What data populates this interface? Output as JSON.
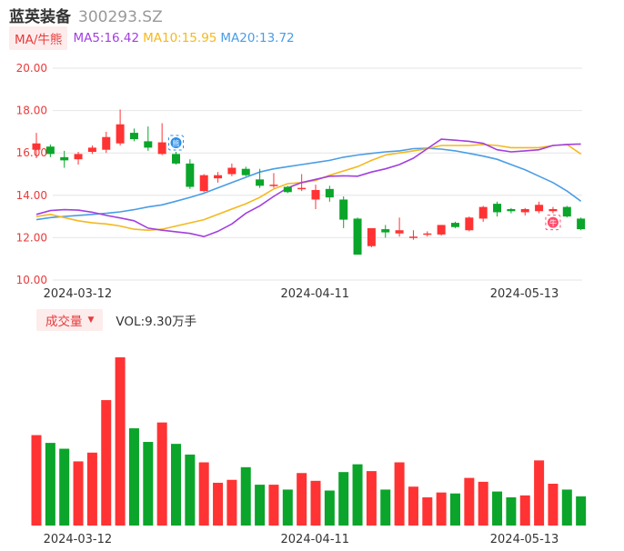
{
  "header": {
    "stock_name": "蓝英装备",
    "stock_code": "300293.SZ"
  },
  "ma_bar": {
    "chip_label": "MA/牛熊",
    "ma5": "MA5:16.42",
    "ma10": "MA10:15.95",
    "ma20": "MA20:13.72"
  },
  "volume_bar": {
    "chip_label": "成交量",
    "chip_caret": "▼",
    "value_text": "VOL:9.30万手"
  },
  "colors": {
    "up": "#ff3333",
    "down": "#0aa52a",
    "ma5": "#a23fe0",
    "ma10": "#f5b81e",
    "ma20": "#4a9de6",
    "grid": "#e6e6e6",
    "axis_label": "#e83b3b"
  },
  "icons": {
    "bear_marker": "bear-signal-icon",
    "bull_marker": "bull-signal-icon",
    "bear_marker_glyph": "熊",
    "bull_marker_glyph": "牛"
  },
  "chart_data": {
    "type": "candlestick",
    "y_ticks": [
      "20.00",
      "18.00",
      "16.00",
      "14.00",
      "12.00",
      "10.00"
    ],
    "ylim": [
      10,
      20
    ],
    "x_tick_labels": [
      {
        "index": 1,
        "label": "2024-03-12"
      },
      {
        "index": 18,
        "label": "2024-04-11"
      },
      {
        "index": 33,
        "label": "2024-05-13"
      }
    ],
    "candles": [
      {
        "o": 16.15,
        "h": 16.95,
        "l": 15.75,
        "c": 16.45
      },
      {
        "o": 16.3,
        "h": 16.4,
        "l": 15.8,
        "c": 15.95
      },
      {
        "o": 15.8,
        "h": 16.1,
        "l": 15.3,
        "c": 15.65
      },
      {
        "o": 15.7,
        "h": 16.05,
        "l": 15.45,
        "c": 15.95
      },
      {
        "o": 16.05,
        "h": 16.35,
        "l": 15.95,
        "c": 16.25
      },
      {
        "o": 16.15,
        "h": 17.0,
        "l": 16.0,
        "c": 16.75
      },
      {
        "o": 16.45,
        "h": 18.05,
        "l": 16.35,
        "c": 17.35
      },
      {
        "o": 16.95,
        "h": 17.15,
        "l": 16.55,
        "c": 16.65
      },
      {
        "o": 16.55,
        "h": 17.25,
        "l": 16.1,
        "c": 16.25
      },
      {
        "o": 15.95,
        "h": 17.4,
        "l": 15.9,
        "c": 16.5
      },
      {
        "o": 15.95,
        "h": 16.05,
        "l": 15.45,
        "c": 15.5
      },
      {
        "o": 15.5,
        "h": 15.7,
        "l": 14.3,
        "c": 14.4
      },
      {
        "o": 14.2,
        "h": 15.0,
        "l": 14.15,
        "c": 14.95
      },
      {
        "o": 14.8,
        "h": 15.1,
        "l": 14.6,
        "c": 14.95
      },
      {
        "o": 15.0,
        "h": 15.5,
        "l": 14.9,
        "c": 15.3
      },
      {
        "o": 15.25,
        "h": 15.35,
        "l": 14.9,
        "c": 14.95
      },
      {
        "o": 14.75,
        "h": 15.25,
        "l": 14.35,
        "c": 14.45
      },
      {
        "o": 14.45,
        "h": 15.05,
        "l": 14.35,
        "c": 14.5
      },
      {
        "o": 14.4,
        "h": 14.45,
        "l": 14.1,
        "c": 14.15
      },
      {
        "o": 14.3,
        "h": 15.0,
        "l": 14.2,
        "c": 14.35
      },
      {
        "o": 13.8,
        "h": 14.5,
        "l": 13.35,
        "c": 14.25
      },
      {
        "o": 14.3,
        "h": 14.45,
        "l": 13.7,
        "c": 13.9
      },
      {
        "o": 13.8,
        "h": 13.95,
        "l": 12.45,
        "c": 12.85
      },
      {
        "o": 12.9,
        "h": 12.95,
        "l": 11.2,
        "c": 11.2
      },
      {
        "o": 11.6,
        "h": 12.45,
        "l": 11.55,
        "c": 12.45
      },
      {
        "o": 12.4,
        "h": 12.6,
        "l": 12.0,
        "c": 12.25
      },
      {
        "o": 12.2,
        "h": 12.95,
        "l": 12.05,
        "c": 12.35
      },
      {
        "o": 12.0,
        "h": 12.35,
        "l": 11.9,
        "c": 12.05
      },
      {
        "o": 12.15,
        "h": 12.3,
        "l": 12.05,
        "c": 12.2
      },
      {
        "o": 12.15,
        "h": 12.6,
        "l": 12.1,
        "c": 12.6
      },
      {
        "o": 12.7,
        "h": 12.75,
        "l": 12.45,
        "c": 12.5
      },
      {
        "o": 12.35,
        "h": 13.0,
        "l": 12.3,
        "c": 12.95
      },
      {
        "o": 12.9,
        "h": 13.5,
        "l": 12.75,
        "c": 13.45
      },
      {
        "o": 13.6,
        "h": 13.7,
        "l": 13.0,
        "c": 13.2
      },
      {
        "o": 13.35,
        "h": 13.4,
        "l": 13.15,
        "c": 13.25
      },
      {
        "o": 13.2,
        "h": 13.4,
        "l": 13.05,
        "c": 13.35
      },
      {
        "o": 13.25,
        "h": 13.7,
        "l": 13.15,
        "c": 13.55
      },
      {
        "o": 13.25,
        "h": 13.45,
        "l": 13.15,
        "c": 13.35
      },
      {
        "o": 13.45,
        "h": 13.5,
        "l": 12.95,
        "c": 13.0
      },
      {
        "o": 12.9,
        "h": 12.95,
        "l": 12.35,
        "c": 12.4
      }
    ],
    "ma5": [
      13.1,
      13.28,
      13.32,
      13.3,
      13.2,
      13.05,
      12.93,
      12.8,
      12.45,
      12.35,
      12.28,
      12.2,
      12.05,
      12.3,
      12.65,
      13.15,
      13.5,
      13.95,
      14.35,
      14.6,
      14.75,
      14.9,
      14.92,
      14.9,
      15.1,
      15.25,
      15.45,
      15.75,
      16.2,
      16.65,
      16.6,
      16.55,
      16.45,
      16.15,
      16.05,
      16.1,
      16.15,
      16.35,
      16.4,
      16.42
    ],
    "ma10": [
      13.0,
      13.1,
      12.95,
      12.8,
      12.7,
      12.65,
      12.55,
      12.4,
      12.35,
      12.4,
      12.55,
      12.7,
      12.85,
      13.1,
      13.35,
      13.6,
      13.9,
      14.3,
      14.55,
      14.6,
      14.7,
      14.95,
      15.15,
      15.35,
      15.65,
      15.9,
      16.0,
      16.1,
      16.2,
      16.35,
      16.35,
      16.35,
      16.4,
      16.35,
      16.25,
      16.25,
      16.25,
      16.35,
      16.4,
      15.95
    ],
    "ma20": [
      12.85,
      12.95,
      13.0,
      13.05,
      13.1,
      13.15,
      13.22,
      13.32,
      13.45,
      13.55,
      13.72,
      13.9,
      14.1,
      14.35,
      14.6,
      14.85,
      15.1,
      15.25,
      15.35,
      15.45,
      15.55,
      15.65,
      15.8,
      15.9,
      15.98,
      16.05,
      16.1,
      16.2,
      16.22,
      16.18,
      16.1,
      15.98,
      15.85,
      15.7,
      15.45,
      15.2,
      14.9,
      14.6,
      14.2,
      13.72
    ],
    "volumes": [
      9.3,
      8.5,
      7.9,
      6.6,
      7.5,
      12.9,
      17.3,
      10.0,
      8.6,
      10.6,
      8.4,
      7.3,
      6.5,
      4.4,
      4.7,
      6.0,
      4.2,
      4.2,
      3.7,
      5.4,
      4.6,
      3.6,
      5.5,
      6.3,
      5.6,
      3.7,
      6.5,
      4.0,
      2.9,
      3.4,
      3.3,
      4.9,
      4.5,
      3.5,
      2.9,
      3.1,
      6.7,
      4.3,
      3.7,
      3.0
    ],
    "bear_marker_index": 10,
    "bull_marker_index": 37
  }
}
